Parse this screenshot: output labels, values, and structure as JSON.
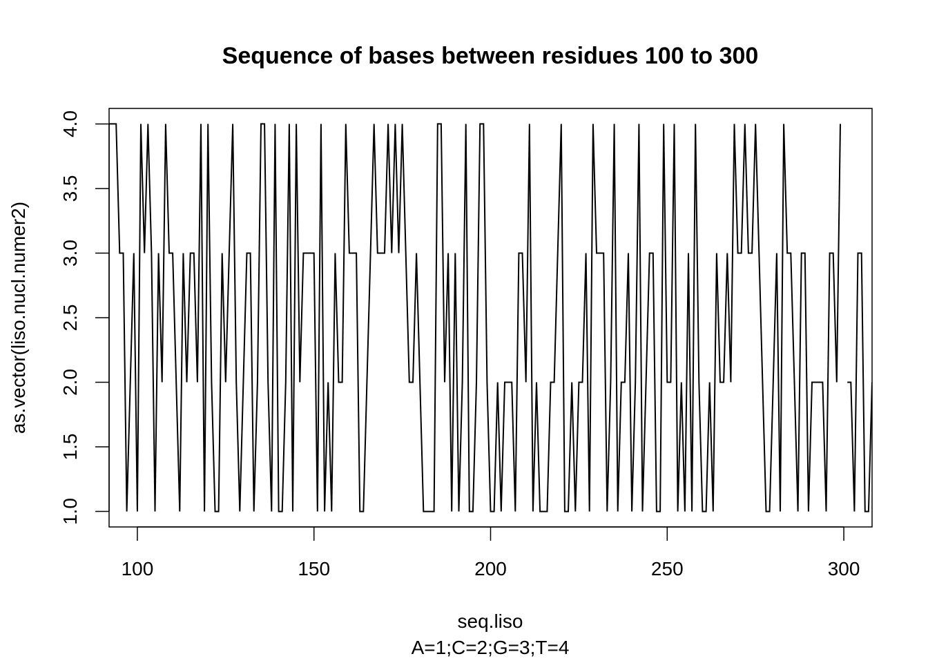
{
  "chart_data": {
    "type": "line",
    "title": "Sequence of bases between residues 100 to 300",
    "xlabel": "seq.liso",
    "subtitle": "A=1;C=2;G=3;T=4",
    "ylabel": "as.vector(liso.nucl.numer2)",
    "xlim": [
      92,
      308
    ],
    "ylim": [
      0.88,
      4.12
    ],
    "x_ticks": [
      100,
      150,
      200,
      250,
      300
    ],
    "x_tick_labels": [
      "100",
      "150",
      "200",
      "250",
      "300"
    ],
    "y_ticks": [
      1.0,
      1.5,
      2.0,
      2.5,
      3.0,
      3.5,
      4.0
    ],
    "y_tick_labels": [
      "1.0",
      "1.5",
      "2.0",
      "2.5",
      "3.0",
      "3.5",
      "4.0"
    ],
    "grid": false,
    "line_color": "#000000",
    "x": [
      92,
      93,
      94,
      95,
      96,
      97,
      98,
      99,
      100,
      101,
      102,
      103,
      104,
      105,
      106,
      107,
      108,
      109,
      110,
      111,
      112,
      113,
      114,
      115,
      116,
      117,
      118,
      119,
      120,
      121,
      122,
      123,
      124,
      125,
      126,
      127,
      128,
      129,
      130,
      131,
      132,
      133,
      134,
      135,
      136,
      137,
      138,
      139,
      140,
      141,
      142,
      143,
      144,
      145,
      146,
      147,
      148,
      149,
      150,
      151,
      152,
      153,
      154,
      155,
      156,
      157,
      158,
      159,
      160,
      161,
      162,
      163,
      164,
      165,
      166,
      167,
      168,
      169,
      170,
      171,
      172,
      173,
      174,
      175,
      176,
      177,
      178,
      179,
      180,
      181,
      182,
      183,
      184,
      185,
      186,
      187,
      188,
      189,
      190,
      191,
      192,
      193,
      194,
      195,
      196,
      197,
      198,
      199,
      200,
      201,
      202,
      203,
      204,
      205,
      206,
      207,
      208,
      209,
      210,
      211,
      212,
      213,
      214,
      215,
      216,
      217,
      218,
      219,
      220,
      221,
      222,
      223,
      224,
      225,
      226,
      227,
      228,
      229,
      230,
      231,
      232,
      233,
      234,
      235,
      236,
      237,
      238,
      239,
      240,
      241,
      242,
      243,
      244,
      245,
      246,
      247,
      248,
      249,
      250,
      251,
      252,
      253,
      254,
      255,
      256,
      257,
      258,
      259,
      260,
      261,
      262,
      263,
      264,
      265,
      266,
      267,
      268,
      269,
      270,
      271,
      272,
      273,
      274,
      275,
      276,
      277,
      278,
      279,
      280,
      281,
      282,
      283,
      284,
      285,
      286,
      287,
      288,
      289,
      290,
      291,
      292,
      293,
      294,
      295,
      296,
      297,
      298,
      299,
      300,
      301,
      302,
      303,
      304,
      305,
      306,
      307,
      308
    ],
    "y": [
      4,
      4,
      4,
      3,
      3,
      1,
      2,
      3,
      1,
      4,
      3,
      4,
      3,
      1,
      3,
      2,
      4,
      3,
      3,
      2,
      1,
      3,
      2,
      3,
      3,
      2,
      4,
      1,
      4,
      2,
      1,
      1,
      3,
      2,
      3,
      4,
      2,
      1,
      2,
      3,
      3,
      1,
      2,
      4,
      4,
      2,
      1,
      4,
      1,
      1,
      2,
      4,
      1,
      4,
      2,
      3,
      3,
      3,
      3,
      1,
      4,
      1,
      2,
      1,
      3,
      2,
      2,
      4,
      3,
      3,
      3,
      1,
      1,
      2,
      3,
      4,
      3,
      3,
      3,
      4,
      3,
      4,
      3,
      4,
      3,
      2,
      2,
      3,
      2,
      1,
      1,
      1,
      1,
      4,
      4,
      2,
      3,
      1,
      3,
      1,
      2,
      4,
      1,
      1,
      2,
      4,
      4,
      2,
      1,
      1,
      2,
      1,
      2,
      2,
      2,
      1,
      3,
      3,
      2,
      4,
      1,
      2,
      1,
      1,
      1,
      2,
      2,
      3,
      4,
      1,
      1,
      2,
      1,
      2,
      2,
      3,
      1,
      4,
      3,
      3,
      3,
      1,
      2,
      4,
      1,
      2,
      2,
      3,
      1,
      2,
      4,
      1,
      2,
      3,
      3,
      1,
      1,
      4,
      2,
      2,
      4,
      1,
      2,
      1,
      3,
      1,
      4,
      2,
      1,
      1,
      2,
      1,
      3,
      2,
      2,
      3,
      2,
      4,
      3,
      3,
      4,
      3,
      3,
      4,
      3,
      2,
      1,
      1,
      2,
      3,
      1,
      4,
      3,
      3,
      2,
      1,
      3,
      3,
      1,
      2,
      2,
      2,
      2,
      1,
      3,
      3,
      2,
      4,
      null,
      2,
      2,
      1,
      3,
      3,
      1,
      1,
      2
    ]
  }
}
